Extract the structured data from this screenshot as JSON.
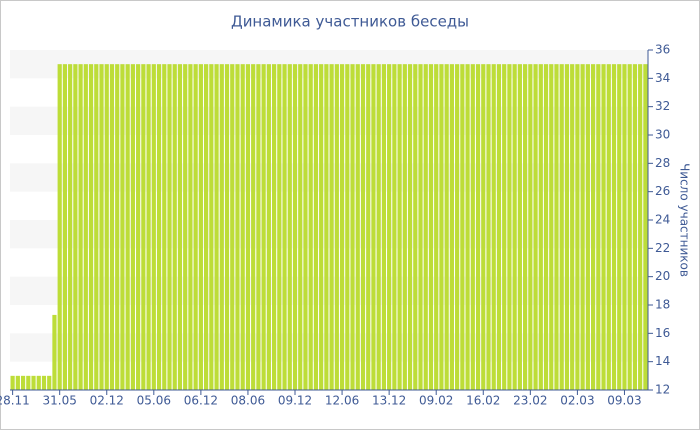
{
  "chart_data": {
    "type": "bar",
    "title": "Динамика участников беседы",
    "y_label": "Число участников",
    "categories": [
      "28.11",
      null,
      null,
      null,
      null,
      null,
      null,
      null,
      null,
      "31.05",
      null,
      null,
      null,
      null,
      null,
      null,
      null,
      null,
      "02.12",
      null,
      null,
      null,
      null,
      null,
      null,
      null,
      null,
      "05.06",
      null,
      null,
      null,
      null,
      null,
      null,
      null,
      null,
      "06.12",
      null,
      null,
      null,
      null,
      null,
      null,
      null,
      null,
      "08.06",
      null,
      null,
      null,
      null,
      null,
      null,
      null,
      null,
      "09.12",
      null,
      null,
      null,
      null,
      null,
      null,
      null,
      null,
      "12.06",
      null,
      null,
      null,
      null,
      null,
      null,
      null,
      null,
      "13.12",
      null,
      null,
      null,
      null,
      null,
      null,
      null,
      null,
      "09.02",
      null,
      null,
      null,
      null,
      null,
      null,
      null,
      null,
      "16.02",
      null,
      null,
      null,
      null,
      null,
      null,
      null,
      null,
      "23.02",
      null,
      null,
      null,
      null,
      null,
      null,
      null,
      null,
      "02.03",
      null,
      null,
      null,
      null,
      null,
      null,
      null,
      null,
      "09.03",
      null,
      null,
      null,
      null
    ],
    "values": [
      13,
      13,
      13,
      13,
      13,
      13,
      13,
      13,
      17.3,
      35,
      35,
      35,
      35,
      35,
      35,
      35,
      35,
      35,
      35,
      35,
      35,
      35,
      35,
      35,
      35,
      35,
      35,
      35,
      35,
      35,
      35,
      35,
      35,
      35,
      35,
      35,
      35,
      35,
      35,
      35,
      35,
      35,
      35,
      35,
      35,
      35,
      35,
      35,
      35,
      35,
      35,
      35,
      35,
      35,
      35,
      35,
      35,
      35,
      35,
      35,
      35,
      35,
      35,
      35,
      35,
      35,
      35,
      35,
      35,
      35,
      35,
      35,
      35,
      35,
      35,
      35,
      35,
      35,
      35,
      35,
      35,
      35,
      35,
      35,
      35,
      35,
      35,
      35,
      35,
      35,
      35,
      35,
      35,
      35,
      35,
      35,
      35,
      35,
      35,
      35,
      35,
      35,
      35,
      35,
      35,
      35,
      35,
      35,
      35,
      35,
      35,
      35,
      35,
      35,
      35,
      35,
      35,
      35,
      35,
      35,
      35,
      35
    ],
    "color": "#bddd38",
    "ylim": [
      12,
      36
    ],
    "yticks": [
      12,
      14,
      16,
      18,
      20,
      22,
      24,
      26,
      28,
      30,
      32,
      34,
      36
    ],
    "grid": true
  }
}
